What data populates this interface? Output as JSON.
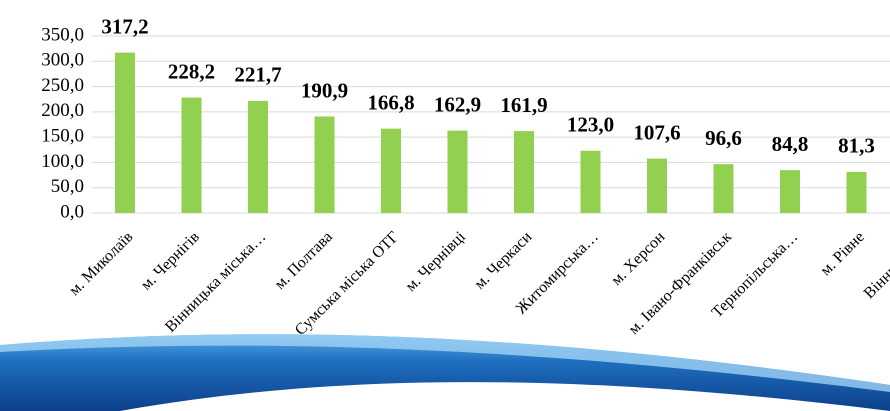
{
  "chart_data": {
    "type": "bar",
    "categories": [
      "м. Миколаїв",
      "м. Чернігів",
      "Вінницька міська…",
      "м. Полтава",
      "Сумська міська ОТГ",
      "м. Чернівці",
      "м. Черкаси",
      "Житомирська…",
      "м. Херсон",
      "м. Івано-Франківськ",
      "Тернопільська…",
      "м. Рівне",
      "Вінницька…"
    ],
    "values": [
      317.2,
      228.2,
      221.7,
      190.9,
      166.8,
      162.9,
      161.9,
      123.0,
      107.6,
      96.6,
      84.8,
      81.3,
      null
    ],
    "value_labels": [
      "317,2",
      "228,2",
      "221,7",
      "190,9",
      "166,8",
      "162,9",
      "161,9",
      "123,0",
      "107,6",
      "96,6",
      "84,8",
      "81,3",
      null
    ],
    "color": "#92d050",
    "ylim": [
      0,
      350
    ],
    "yticks": [
      {
        "value": 0,
        "label": "0,0"
      },
      {
        "value": 50,
        "label": "50,0"
      },
      {
        "value": 100,
        "label": "100,0"
      },
      {
        "value": 150,
        "label": "150,0"
      },
      {
        "value": 200,
        "label": "200,0"
      },
      {
        "value": 250,
        "label": "250,0"
      },
      {
        "value": 300,
        "label": "300,0"
      },
      {
        "value": 350,
        "label": "350,0"
      }
    ],
    "grid": true
  }
}
